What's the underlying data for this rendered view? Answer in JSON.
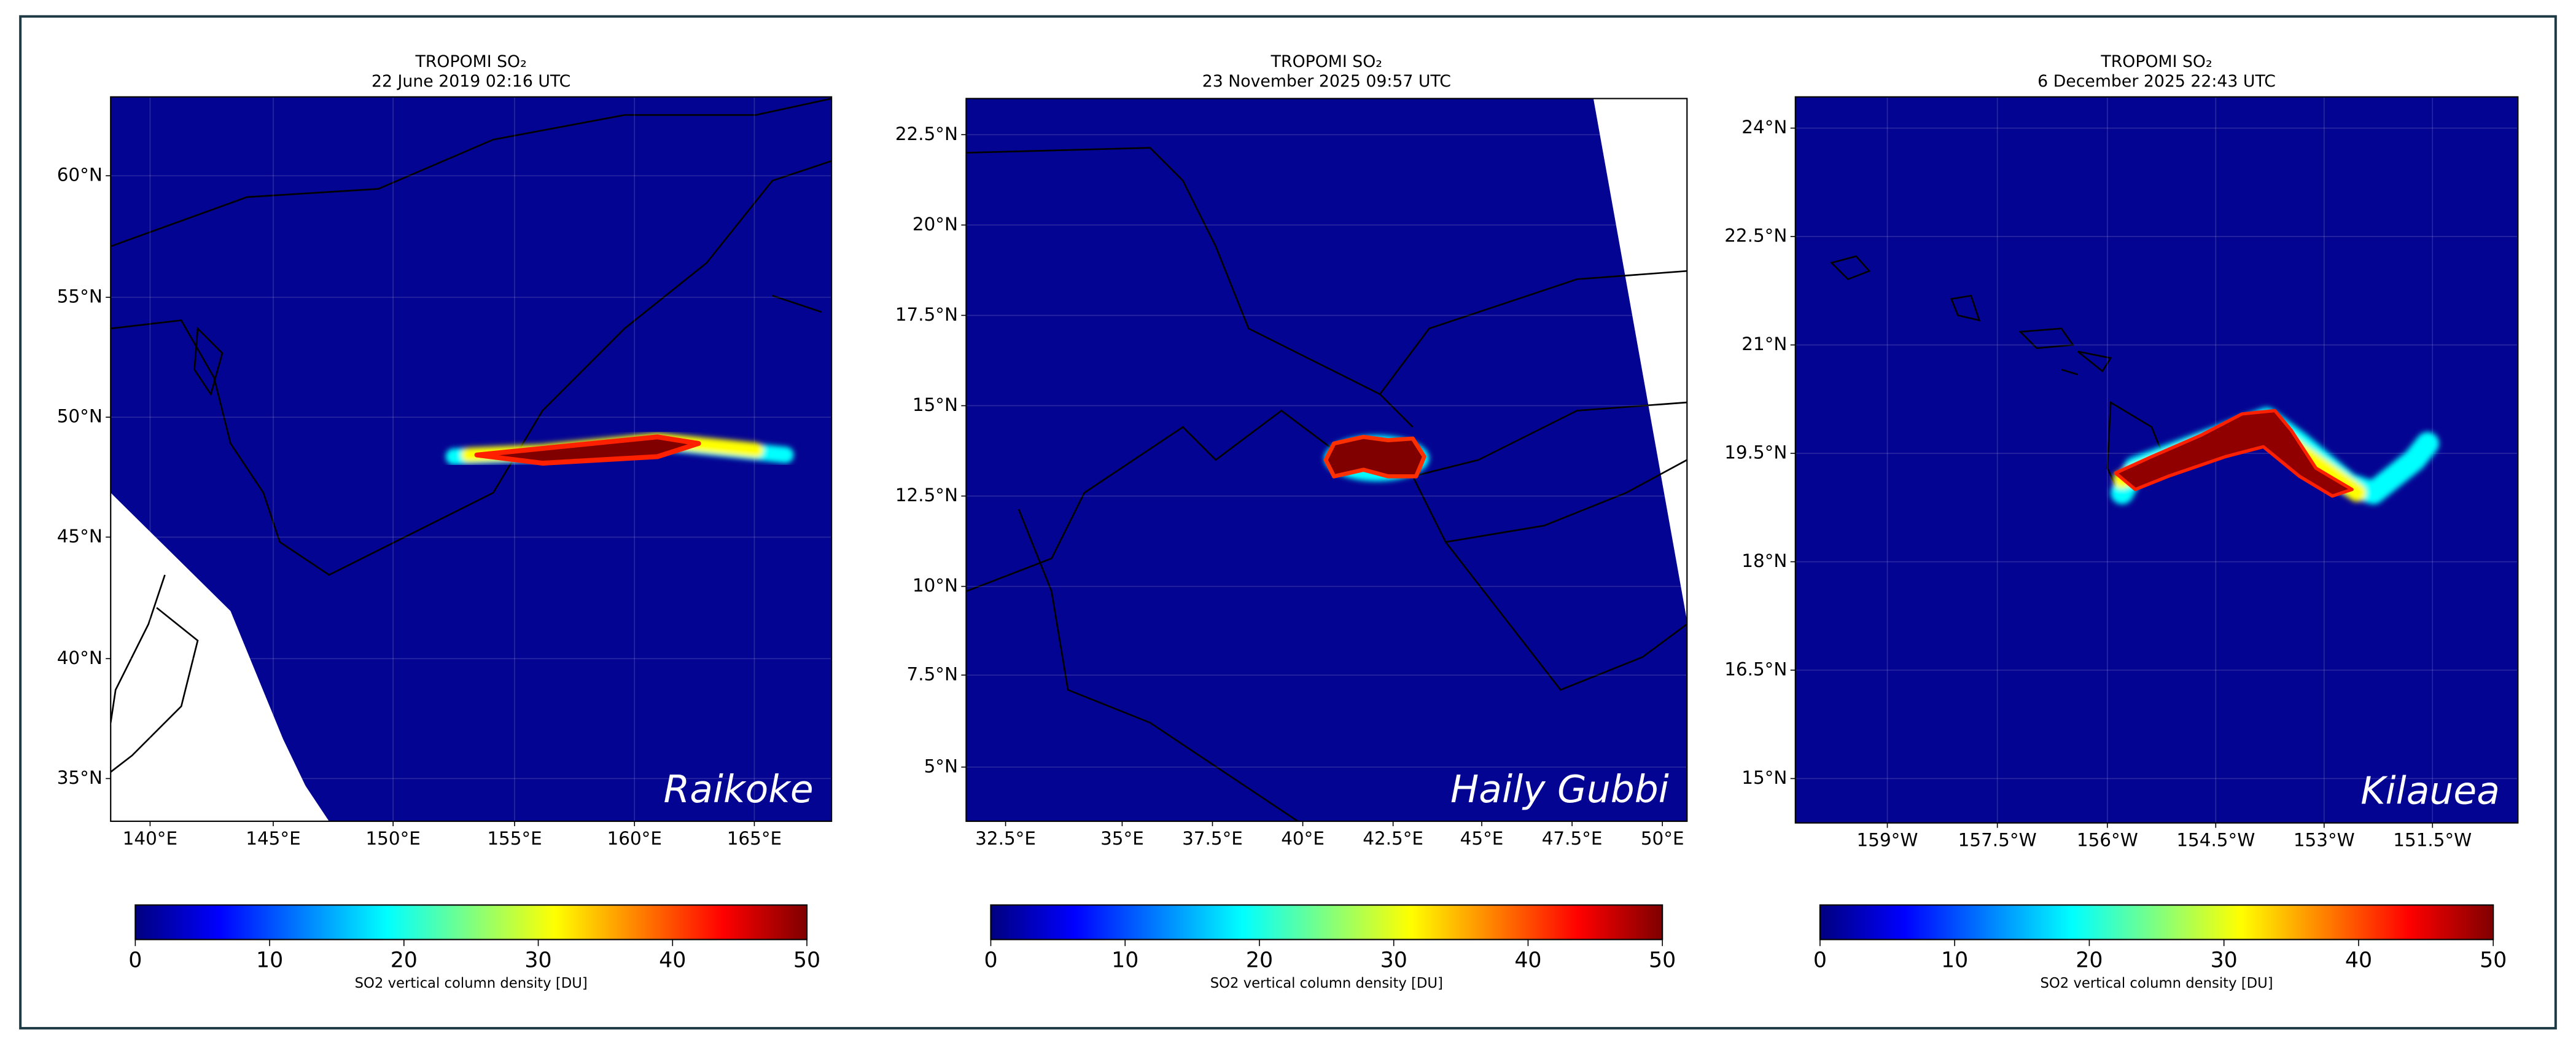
{
  "figure": {
    "panels": [
      {
        "title": "TROPOMI SO₂",
        "date": "22 June 2019 02:16 UTC",
        "name": "Raikoke",
        "yticks": [
          "60°N",
          "55°N",
          "50°N",
          "45°N",
          "40°N",
          "35°N"
        ],
        "xticks": [
          "140°E",
          "145°E",
          "150°E",
          "155°E",
          "160°E",
          "165°E"
        ],
        "colorbar": {
          "ticks": [
            0,
            10,
            20,
            30,
            40,
            50
          ],
          "label": "SO2 vertical column density [DU]"
        }
      },
      {
        "title": "TROPOMI SO₂",
        "date": "23 November 2025 09:57 UTC",
        "name": "Haily Gubbi",
        "yticks": [
          "22.5°N",
          "20°N",
          "17.5°N",
          "15°N",
          "12.5°N",
          "10°N",
          "7.5°N",
          "5°N"
        ],
        "xticks": [
          "32.5°E",
          "35°E",
          "37.5°E",
          "40°E",
          "42.5°E",
          "45°E",
          "47.5°E",
          "50°E"
        ],
        "colorbar": {
          "ticks": [
            0,
            10,
            20,
            30,
            40,
            50
          ],
          "label": "SO2 vertical column density [DU]"
        }
      },
      {
        "title": "TROPOMI SO₂",
        "date": "6 December 2025 22:43 UTC",
        "name": "Kilauea",
        "yticks": [
          "24°N",
          "22.5°N",
          "21°N",
          "19.5°N",
          "18°N",
          "16.5°N",
          "15°N"
        ],
        "xticks": [
          "159°W",
          "157.5°W",
          "156°W",
          "154.5°W",
          "153°W",
          "151.5°W"
        ],
        "colorbar": {
          "ticks": [
            0,
            10,
            20,
            30,
            40,
            50
          ],
          "label": "SO2 vertical column density [DU]"
        }
      }
    ]
  }
}
